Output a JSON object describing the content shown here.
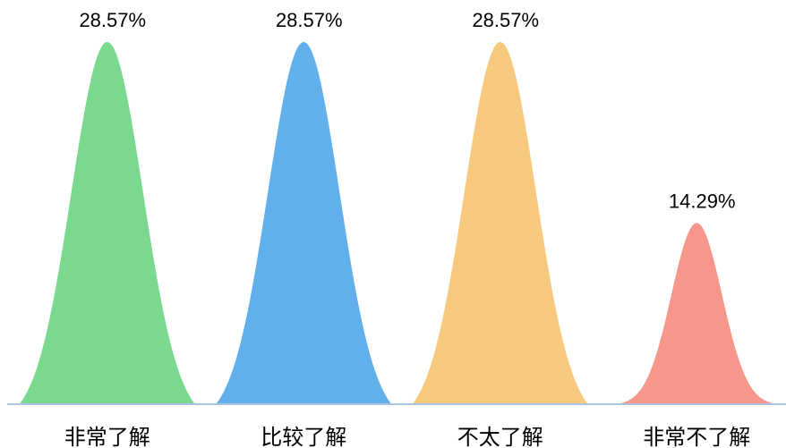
{
  "chart_data": {
    "type": "bar",
    "mark_shape": "bell-curve",
    "categories": [
      "非常了解",
      "比较了解",
      "不太了解",
      "非常不了解"
    ],
    "values": [
      28.57,
      28.57,
      28.57,
      14.29
    ],
    "data_labels": [
      "28.57%",
      "28.57%",
      "28.57%",
      "14.29%"
    ],
    "colors": [
      "#7AD98F",
      "#62B0EB",
      "#F7C97E",
      "#F7968B"
    ],
    "axis_line_color": "#A9C3E0",
    "grid": false
  }
}
